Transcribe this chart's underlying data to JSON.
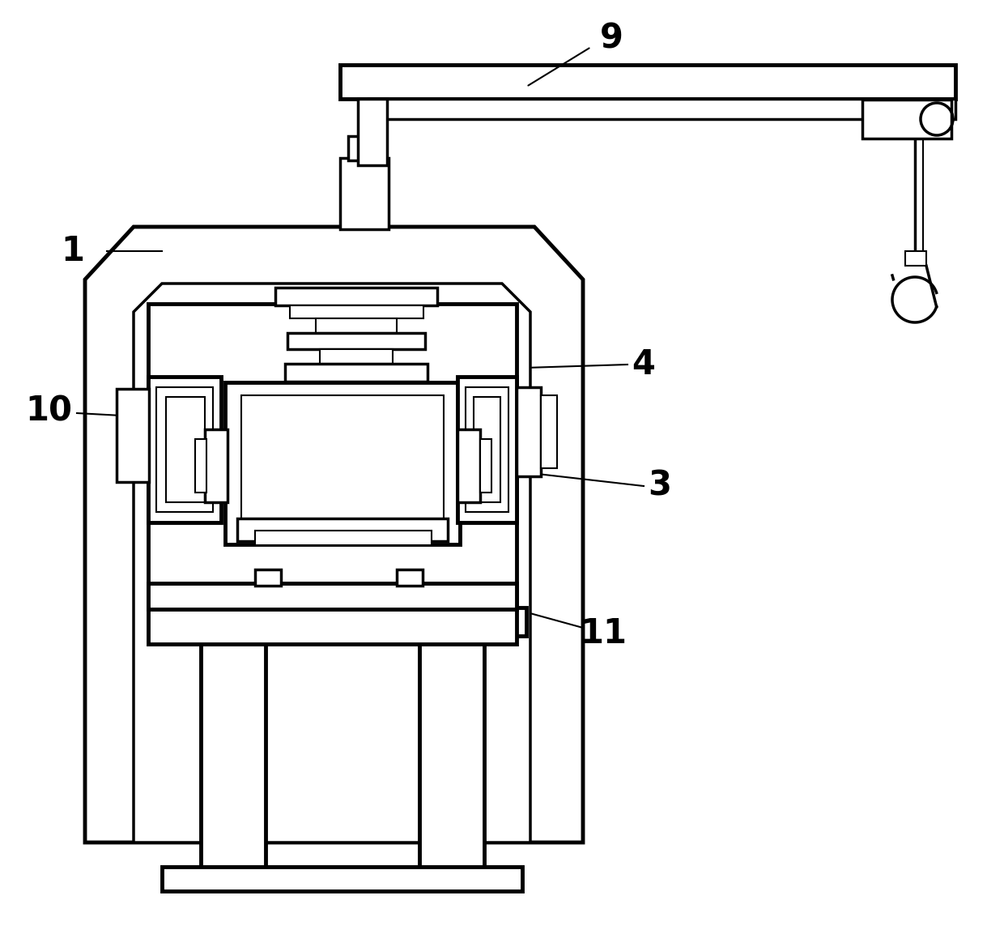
{
  "bg_color": "#ffffff",
  "line_color": "#000000",
  "lw_thin": 1.5,
  "lw_med": 2.5,
  "lw_thick": 3.5
}
